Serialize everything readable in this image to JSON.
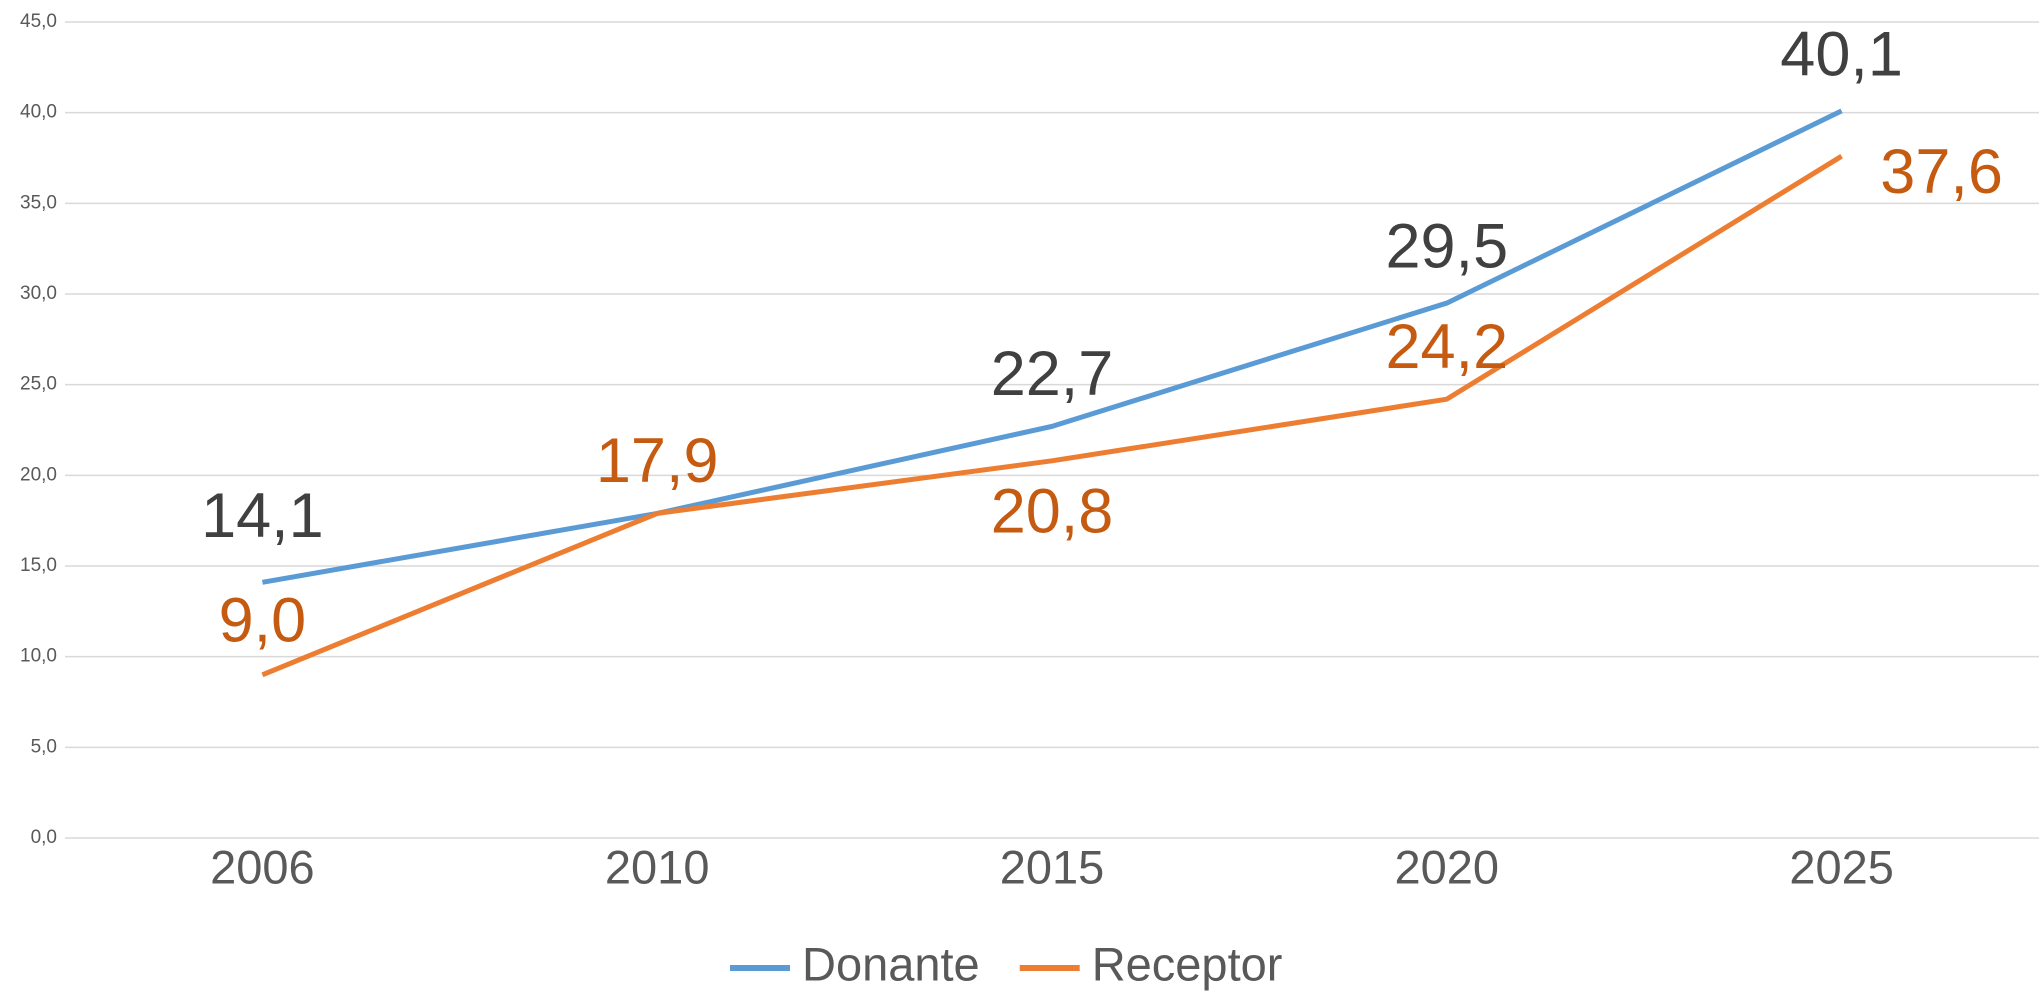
{
  "chart_data": {
    "type": "line",
    "categories": [
      "2006",
      "2010",
      "2015",
      "2020",
      "2025"
    ],
    "series": [
      {
        "name": "Donante",
        "color": "#5b9bd5",
        "label_color": "#404040",
        "values": [
          14.1,
          17.9,
          22.7,
          29.5,
          40.1
        ],
        "value_labels": [
          "14,1",
          null,
          "22,7",
          "29,5",
          "40,1"
        ]
      },
      {
        "name": "Receptor",
        "color": "#ed7d31",
        "label_color": "#c55a11",
        "values": [
          9.0,
          17.9,
          20.8,
          24.2,
          37.6
        ],
        "value_labels": [
          "9,0",
          "17,9",
          "20,8",
          "24,2",
          "37,6"
        ]
      }
    ],
    "ylim": [
      0,
      45
    ],
    "yticks": [
      {
        "value": 0,
        "label": "0,0"
      },
      {
        "value": 5,
        "label": "5,0"
      },
      {
        "value": 10,
        "label": "10,0"
      },
      {
        "value": 15,
        "label": "15,0"
      },
      {
        "value": 20,
        "label": "20,0"
      },
      {
        "value": 25,
        "label": "25,0"
      },
      {
        "value": 30,
        "label": "30,0"
      },
      {
        "value": 35,
        "label": "35,0"
      },
      {
        "value": 40,
        "label": "40,0"
      },
      {
        "value": 45,
        "label": "45,0"
      }
    ],
    "grid": true,
    "legend": "bottom"
  }
}
